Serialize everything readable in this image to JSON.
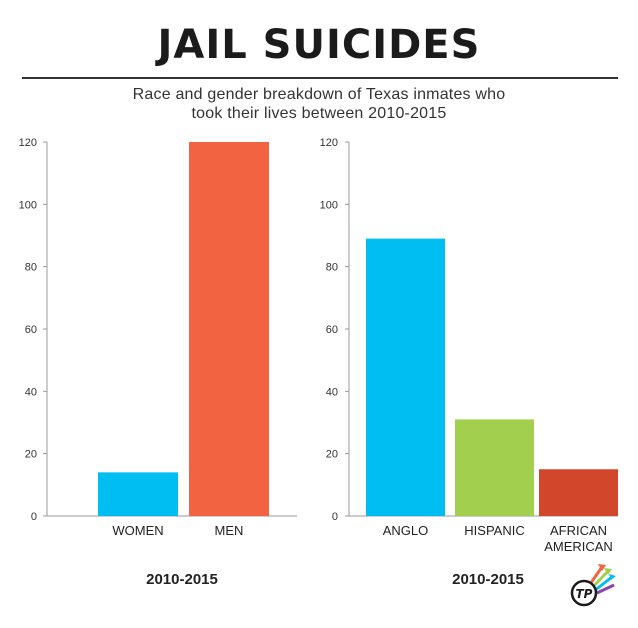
{
  "header": {
    "title": "JAIL SUICIDES",
    "subtitle_line1": "Race and gender breakdown of Texas inmates who",
    "subtitle_line2": "took their lives between 2010-2015"
  },
  "logo": {
    "text": "TP",
    "icon": "tp-logo-icon"
  },
  "chart_data": [
    {
      "type": "bar",
      "categories": [
        "WOMEN",
        "MEN"
      ],
      "values": [
        14,
        120
      ],
      "colors": [
        "#00bdf2",
        "#f26441"
      ],
      "xlabel": "2010-2015",
      "ylabel": "",
      "ylim": [
        0,
        120
      ],
      "yticks": [
        0,
        20,
        40,
        60,
        80,
        100,
        120
      ],
      "grid": false
    },
    {
      "type": "bar",
      "categories": [
        "ANGLO",
        "HISPANIC",
        "AFRICAN AMERICAN"
      ],
      "category_lines": [
        [
          "ANGLO"
        ],
        [
          "HISPANIC"
        ],
        [
          "AFRICAN",
          "AMERICAN"
        ]
      ],
      "values": [
        89,
        31,
        15
      ],
      "colors": [
        "#00bdf2",
        "#a3cf4f",
        "#d2472b"
      ],
      "xlabel": "2010-2015",
      "ylabel": "",
      "ylim": [
        0,
        120
      ],
      "yticks": [
        0,
        20,
        40,
        60,
        80,
        100,
        120
      ],
      "grid": false
    }
  ]
}
